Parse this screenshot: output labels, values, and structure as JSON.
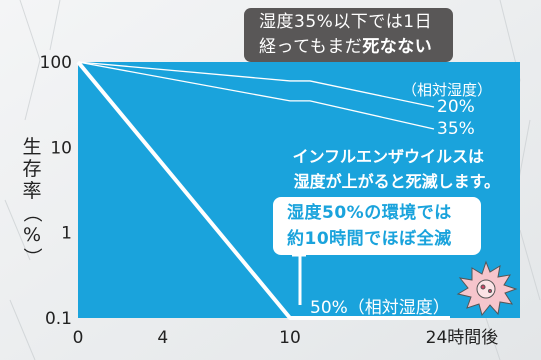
{
  "chart_data": {
    "type": "line",
    "x_ticks": [
      0,
      4,
      10
    ],
    "x_last_label": "24時間後",
    "y_ticks": [
      "100",
      "10",
      "1",
      "0.1"
    ],
    "y_scale": "log",
    "ylabel": "生存率（%）",
    "ylim": [
      0.1,
      100
    ],
    "series_header": "（相対湿度）",
    "series": [
      {
        "name": "20%",
        "points": [
          [
            0,
            100
          ],
          [
            10,
            60
          ],
          [
            24,
            60
          ]
        ]
      },
      {
        "name": "35%",
        "points": [
          [
            0,
            100
          ],
          [
            10,
            35
          ],
          [
            24,
            35
          ]
        ]
      },
      {
        "name": "50%（相対湿度）",
        "points": [
          [
            0,
            100
          ],
          [
            10,
            0.1
          ],
          [
            24,
            0.1
          ]
        ]
      }
    ],
    "callout_top": {
      "line1": "湿度35%以下では1日",
      "line2_a": "経ってもまだ",
      "line2_b": "死なない"
    },
    "note": {
      "line1": "インフルエンザウイルスは",
      "line2": "湿度が上がると死滅します。"
    },
    "callout_mid": {
      "line1": "湿度50%の環境では",
      "line2": "約10時間でほぼ全滅"
    }
  },
  "colors": {
    "plot_bg": "#1aa3dc",
    "line": "#ffffff",
    "callout_dark": "#595757"
  }
}
